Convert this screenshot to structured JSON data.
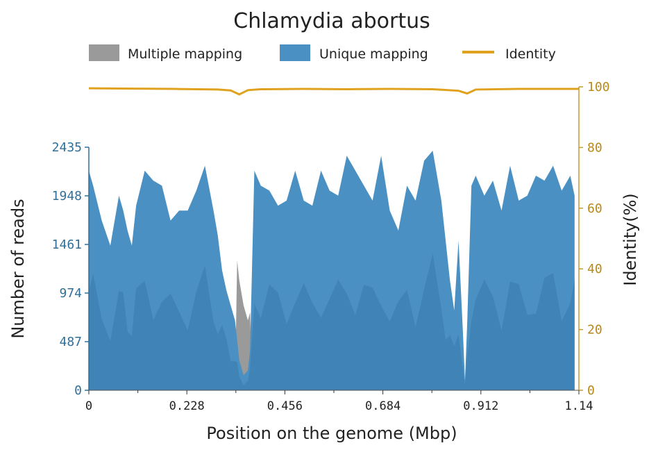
{
  "chart_data": {
    "type": "area",
    "title": "Chlamydia abortus",
    "xlabel": "Position on the genome (Mbp)",
    "ylabel": "Number of reads",
    "y2label": "Identity(%)",
    "xlim": [
      0,
      1.14
    ],
    "ylim": [
      0,
      2435
    ],
    "y2lim": [
      0,
      100
    ],
    "x_ticks": [
      "0",
      "0.228",
      "0.456",
      "0.684",
      "0.912",
      "1.14"
    ],
    "x_tick_values": [
      0,
      0.228,
      0.456,
      0.684,
      0.912,
      1.14
    ],
    "y_ticks": [
      "0",
      "487",
      "974",
      "1461",
      "1948",
      "2435"
    ],
    "y_tick_values": [
      0,
      487,
      974,
      1461,
      1948,
      2435
    ],
    "y2_ticks": [
      "0",
      "20",
      "40",
      "60",
      "80",
      "100"
    ],
    "y2_tick_values": [
      0,
      20,
      40,
      60,
      80,
      100
    ],
    "legend": {
      "placement": "top",
      "entries": [
        "Multiple mapping",
        "Unique mapping",
        "Identity"
      ]
    },
    "colors": {
      "multiple": "#9a9a9a",
      "unique": "#4a90c2",
      "unique_dark": "#3a7db0",
      "identity": "#e0a21e",
      "axis_left": "#2f6f9a",
      "axis_right": "#c79a2e"
    },
    "series": [
      {
        "name": "Unique mapping",
        "x": [
          0,
          0.01,
          0.03,
          0.05,
          0.07,
          0.08,
          0.09,
          0.1,
          0.11,
          0.13,
          0.15,
          0.17,
          0.19,
          0.21,
          0.23,
          0.25,
          0.27,
          0.29,
          0.3,
          0.31,
          0.32,
          0.33,
          0.34,
          0.345,
          0.35,
          0.36,
          0.37,
          0.375,
          0.385,
          0.4,
          0.42,
          0.44,
          0.46,
          0.48,
          0.5,
          0.52,
          0.54,
          0.56,
          0.58,
          0.6,
          0.62,
          0.64,
          0.66,
          0.68,
          0.7,
          0.72,
          0.74,
          0.76,
          0.78,
          0.8,
          0.82,
          0.83,
          0.84,
          0.85,
          0.86,
          0.87,
          0.875,
          0.88,
          0.89,
          0.9,
          0.92,
          0.94,
          0.96,
          0.98,
          1.0,
          1.02,
          1.04,
          1.06,
          1.08,
          1.1,
          1.12,
          1.13
        ],
        "values": [
          2200,
          2050,
          1700,
          1450,
          1950,
          1800,
          1600,
          1450,
          1850,
          2200,
          2100,
          2050,
          1700,
          1800,
          1800,
          2000,
          2250,
          1800,
          1550,
          1200,
          1000,
          850,
          700,
          500,
          300,
          150,
          200,
          400,
          2200,
          2050,
          2000,
          1850,
          1900,
          2200,
          1900,
          1850,
          2200,
          2000,
          1950,
          2350,
          2200,
          2050,
          1900,
          2350,
          1800,
          1600,
          2050,
          1900,
          2300,
          2400,
          1900,
          1500,
          1100,
          800,
          1500,
          600,
          100,
          650,
          2050,
          2150,
          1950,
          2100,
          1800,
          2250,
          1900,
          1950,
          2150,
          2100,
          2250,
          2000,
          2150,
          1950
        ]
      },
      {
        "name": "Multiple mapping",
        "x": [
          0,
          0.34,
          0.345,
          0.35,
          0.36,
          0.37,
          0.375,
          0.38,
          0.82,
          0.83,
          0.835,
          0.84,
          0.85,
          0.86,
          0.87,
          0.88,
          1.14
        ],
        "values": [
          0,
          0,
          1300,
          1100,
          850,
          700,
          780,
          0,
          0,
          0,
          1050,
          650,
          400,
          300,
          200,
          0,
          0
        ]
      },
      {
        "name": "Identity",
        "x": [
          0,
          0.1,
          0.2,
          0.3,
          0.33,
          0.35,
          0.37,
          0.4,
          0.5,
          0.6,
          0.7,
          0.8,
          0.86,
          0.88,
          0.9,
          1.0,
          1.14
        ],
        "values": [
          99.5,
          99.4,
          99.3,
          99.1,
          98.8,
          97.5,
          98.9,
          99.2,
          99.3,
          99.2,
          99.3,
          99.2,
          98.7,
          97.8,
          99.1,
          99.3,
          99.3
        ]
      }
    ]
  }
}
